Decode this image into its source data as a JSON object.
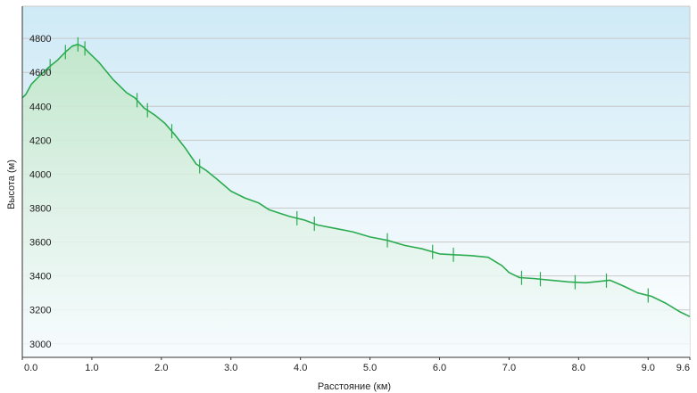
{
  "chart_data": {
    "type": "area",
    "title": "",
    "xlabel": "Расстояние  (км)",
    "ylabel": "Высота (м)",
    "xlim": [
      0,
      9.6
    ],
    "ylim": [
      2920,
      4990
    ],
    "x_ticks": [
      0,
      1,
      2,
      3,
      4,
      5,
      6,
      7,
      8,
      9,
      9.6
    ],
    "x_tick_labels": [
      "0.0",
      "1.0",
      "2.0",
      "3.0",
      "4.0",
      "5.0",
      "6.0",
      "7.0",
      "8.0",
      "9.0",
      "9.6"
    ],
    "y_ticks": [
      3000,
      3200,
      3400,
      3600,
      3800,
      4000,
      4200,
      4400,
      4600,
      4800
    ],
    "y_tick_labels": [
      "3000",
      "3200",
      "3400",
      "3600",
      "3800",
      "4000",
      "4200",
      "4400",
      "4600",
      "4800"
    ],
    "grid": true,
    "legend": "none",
    "colors": {
      "line": "#2bab4f",
      "fill_top": "#d8eef8",
      "fill_bottom": "#ffffff",
      "grid": "#c8c8c8"
    },
    "series": [
      {
        "x": [
          0,
          0.05,
          0.13,
          0.25,
          0.38,
          0.5,
          0.62,
          0.72,
          0.8,
          0.88,
          0.95,
          1.1,
          1.3,
          1.5,
          1.62,
          1.75,
          1.9,
          2.05,
          2.2,
          2.35,
          2.5,
          2.65,
          2.8,
          3.0,
          3.2,
          3.4,
          3.55,
          3.7,
          3.85,
          4.05,
          4.25,
          4.5,
          4.75,
          5.0,
          5.25,
          5.5,
          5.75,
          6.0,
          6.2,
          6.45,
          6.7,
          6.9,
          7.0,
          7.15,
          7.35,
          7.6,
          7.85,
          8.1,
          8.35,
          8.45,
          8.65,
          8.85,
          9.05,
          9.25,
          9.45,
          9.6
        ],
        "y": [
          4450,
          4470,
          4530,
          4580,
          4630,
          4670,
          4720,
          4755,
          4765,
          4750,
          4720,
          4660,
          4560,
          4480,
          4450,
          4390,
          4350,
          4300,
          4230,
          4150,
          4060,
          4020,
          3970,
          3900,
          3860,
          3830,
          3790,
          3770,
          3750,
          3730,
          3700,
          3680,
          3660,
          3630,
          3610,
          3580,
          3560,
          3530,
          3525,
          3520,
          3510,
          3460,
          3420,
          3390,
          3385,
          3375,
          3365,
          3360,
          3370,
          3375,
          3340,
          3300,
          3280,
          3240,
          3190,
          3160
        ]
      }
    ]
  }
}
